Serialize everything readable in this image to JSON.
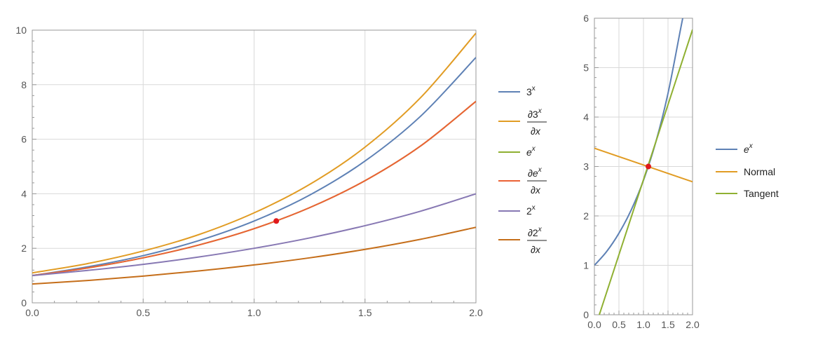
{
  "chart_data": [
    {
      "type": "line",
      "title": "",
      "xlabel": "",
      "ylabel": "",
      "xlim": [
        0,
        2
      ],
      "ylim": [
        0,
        10
      ],
      "grid": true,
      "legend_position": "right",
      "x_ticks": [
        "0.0",
        "0.5",
        "1.0",
        "1.5",
        "2.0"
      ],
      "y_ticks": [
        "0",
        "2",
        "4",
        "6",
        "8",
        "10"
      ],
      "series": [
        {
          "name": "3^x",
          "color": "#5e81b5",
          "x": [
            0,
            0.25,
            0.5,
            0.75,
            1.0,
            1.25,
            1.5,
            1.75,
            2.0
          ],
          "y": [
            1.0,
            1.32,
            1.73,
            2.28,
            3.0,
            3.95,
            5.2,
            6.84,
            9.0
          ]
        },
        {
          "name": "∂3^x/∂x",
          "color": "#e19c24",
          "x": [
            0,
            0.25,
            0.5,
            0.75,
            1.0,
            1.25,
            1.5,
            1.75,
            2.0
          ],
          "y": [
            1.1,
            1.44,
            1.9,
            2.5,
            3.3,
            4.34,
            5.71,
            7.52,
            9.89
          ]
        },
        {
          "name": "e^x",
          "color": "#8fb032",
          "x": [
            0,
            0.25,
            0.5,
            0.75,
            1.0,
            1.25,
            1.5,
            1.75,
            2.0
          ],
          "y": [
            1.0,
            1.28,
            1.65,
            2.12,
            2.72,
            3.49,
            4.48,
            5.75,
            7.39
          ]
        },
        {
          "name": "∂e^x/∂x",
          "color": "#eb6235",
          "x": [
            0,
            0.25,
            0.5,
            0.75,
            1.0,
            1.25,
            1.5,
            1.75,
            2.0
          ],
          "y": [
            1.0,
            1.28,
            1.65,
            2.12,
            2.72,
            3.49,
            4.48,
            5.75,
            7.39
          ]
        },
        {
          "name": "2^x",
          "color": "#8778b3",
          "x": [
            0,
            0.25,
            0.5,
            0.75,
            1.0,
            1.25,
            1.5,
            1.75,
            2.0
          ],
          "y": [
            1.0,
            1.19,
            1.41,
            1.68,
            2.0,
            2.38,
            2.83,
            3.36,
            4.0
          ]
        },
        {
          "name": "∂2^x/∂x",
          "color": "#c56e1a",
          "x": [
            0,
            0.25,
            0.5,
            0.75,
            1.0,
            1.25,
            1.5,
            1.75,
            2.0
          ],
          "y": [
            0.69,
            0.82,
            0.98,
            1.17,
            1.39,
            1.65,
            1.96,
            2.33,
            2.77
          ]
        }
      ],
      "points": [
        {
          "x": 1.1,
          "y": 3.0,
          "color": "#e0191b"
        }
      ]
    },
    {
      "type": "line",
      "title": "",
      "xlabel": "",
      "ylabel": "",
      "xlim": [
        0,
        2
      ],
      "ylim": [
        0,
        6
      ],
      "grid": true,
      "legend_position": "right",
      "x_ticks": [
        "0.0",
        "0.5",
        "1.0",
        "1.5",
        "2.0"
      ],
      "y_ticks": [
        "0",
        "1",
        "2",
        "3",
        "4",
        "5",
        "6"
      ],
      "series": [
        {
          "name": "e^x",
          "color": "#5e81b5",
          "x": [
            0,
            0.25,
            0.5,
            0.75,
            1.0,
            1.25,
            1.5,
            1.75,
            1.8
          ],
          "y": [
            1.0,
            1.28,
            1.65,
            2.12,
            2.72,
            3.49,
            4.48,
            5.75,
            6.0
          ]
        },
        {
          "name": "Normal",
          "color": "#e19c24",
          "x": [
            0,
            2.0
          ],
          "y": [
            3.37,
            2.69
          ]
        },
        {
          "name": "Tangent",
          "color": "#8fb032",
          "x": [
            0.1,
            2.0
          ],
          "y": [
            0.0,
            5.77
          ]
        }
      ],
      "points": [
        {
          "x": 1.1,
          "y": 3.0,
          "color": "#e0191b"
        }
      ]
    }
  ]
}
